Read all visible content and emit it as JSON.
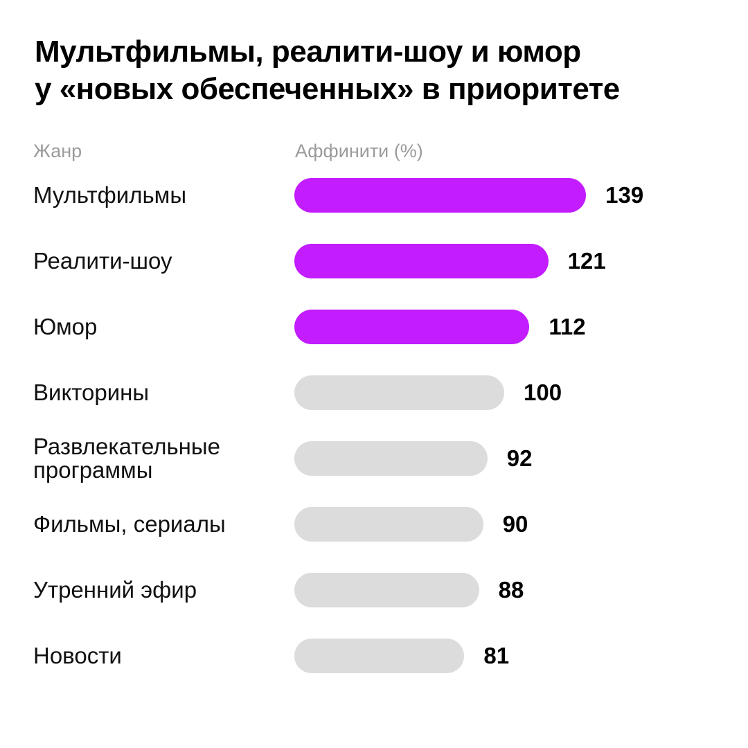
{
  "title_lines": [
    "Мультфильмы, реалити-шоу и юмор",
    "у «новых обеспеченных» в приоритете"
  ],
  "colors": {
    "highlight": "#c21cff",
    "default": "#dcdcdc",
    "header": "#9b9b9b"
  },
  "chart_data": {
    "type": "bar",
    "orientation": "horizontal",
    "title": "Мультфильмы, реалити-шоу и юмор у «новых обеспеченных» в приоритете",
    "xlabel": "Аффинити (%)",
    "ylabel": "Жанр",
    "categories": [
      "Мультфильмы",
      "Реалити-шоу",
      "Юмор",
      "Викторины",
      "Развлекательные программы",
      "Фильмы, сериалы",
      "Утренний эфир",
      "Новости"
    ],
    "category_lines": [
      [
        "Мультфильмы"
      ],
      [
        "Реалити-шоу"
      ],
      [
        "Юмор"
      ],
      [
        "Викторины"
      ],
      [
        "Развлекательные",
        "программы"
      ],
      [
        "Фильмы, сериалы"
      ],
      [
        "Утренний эфир"
      ],
      [
        "Новости"
      ]
    ],
    "values": [
      139,
      121,
      112,
      100,
      92,
      90,
      88,
      81
    ],
    "highlighted": [
      true,
      true,
      true,
      false,
      false,
      false,
      false,
      false
    ],
    "grid": false,
    "legend": "none"
  }
}
